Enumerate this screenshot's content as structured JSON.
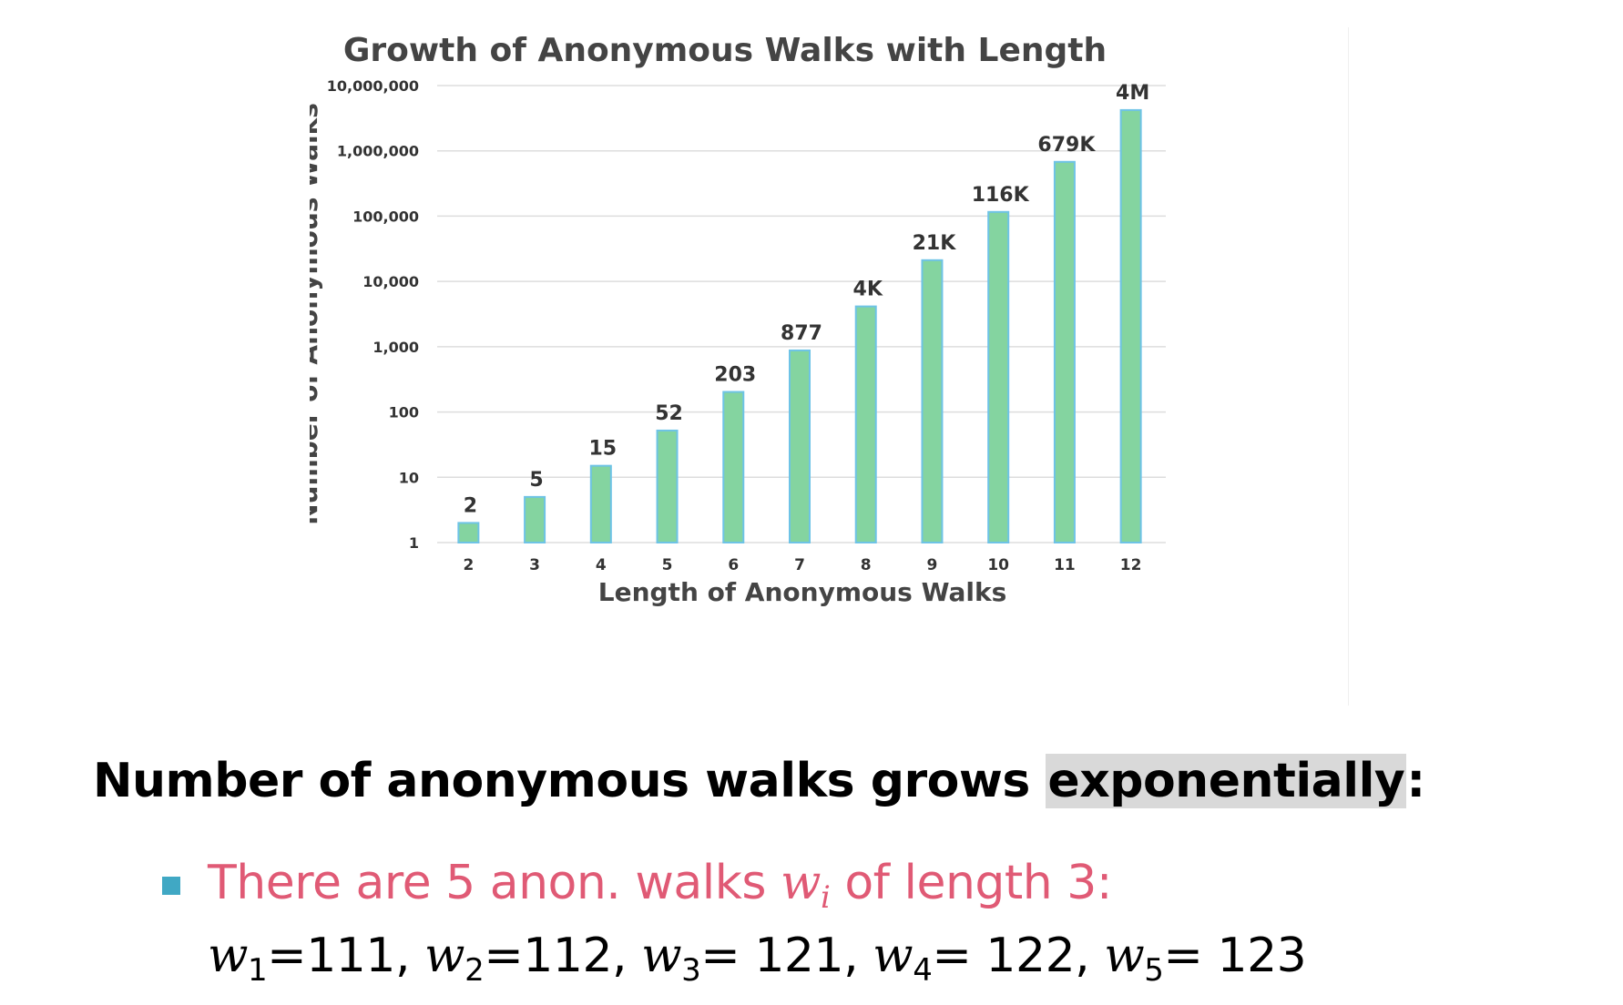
{
  "chart_data": {
    "type": "bar",
    "title": "Growth of Anonymous Walks with Length",
    "xlabel": "Length of Anonymous Walks",
    "ylabel": "Number of Anonymous Walks",
    "yscale": "log",
    "ylim": [
      1,
      10000000
    ],
    "yticks": [
      1,
      10,
      100,
      1000,
      10000,
      100000,
      1000000,
      10000000
    ],
    "ytick_labels": [
      "1",
      "10",
      "100",
      "1,000",
      "10,000",
      "100,000",
      "1,000,000",
      "10,000,000"
    ],
    "categories": [
      "2",
      "3",
      "4",
      "5",
      "6",
      "7",
      "8",
      "9",
      "10",
      "11",
      "12"
    ],
    "values": [
      2,
      5,
      15,
      52,
      203,
      877,
      4140,
      21147,
      115975,
      678570,
      4213597
    ],
    "data_labels": [
      "2",
      "5",
      "15",
      "52",
      "203",
      "877",
      "4K",
      "21K",
      "116K",
      "679K",
      "4M"
    ],
    "grid": true,
    "bar_color": "#84d4a0",
    "bar_edge_color": "#6ec3e6"
  },
  "slide": {
    "headline_prefix": "Number of anonymous walks grows ",
    "headline_highlight": "exponentially",
    "headline_suffix": ":",
    "bullet_prefix": "There are 5 anon. walks ",
    "bullet_var": "w",
    "bullet_var_sub": "i",
    "bullet_suffix": " of length 3:",
    "walks": [
      {
        "sym": "w",
        "sub": "1",
        "value": "=111",
        "sep": ", "
      },
      {
        "sym": "w",
        "sub": "2",
        "value": "=112",
        "sep": ", "
      },
      {
        "sym": "w",
        "sub": "3",
        "value": "= 121",
        "sep": ", "
      },
      {
        "sym": "w",
        "sub": "4",
        "value": "= 122",
        "sep": ", "
      },
      {
        "sym": "w",
        "sub": "5",
        "value": "= 123",
        "sep": ""
      }
    ],
    "colors": {
      "bullet_text": "#e05a75",
      "bullet_marker": "#40a8c4",
      "highlight_bg": "#d9d9d9"
    }
  }
}
